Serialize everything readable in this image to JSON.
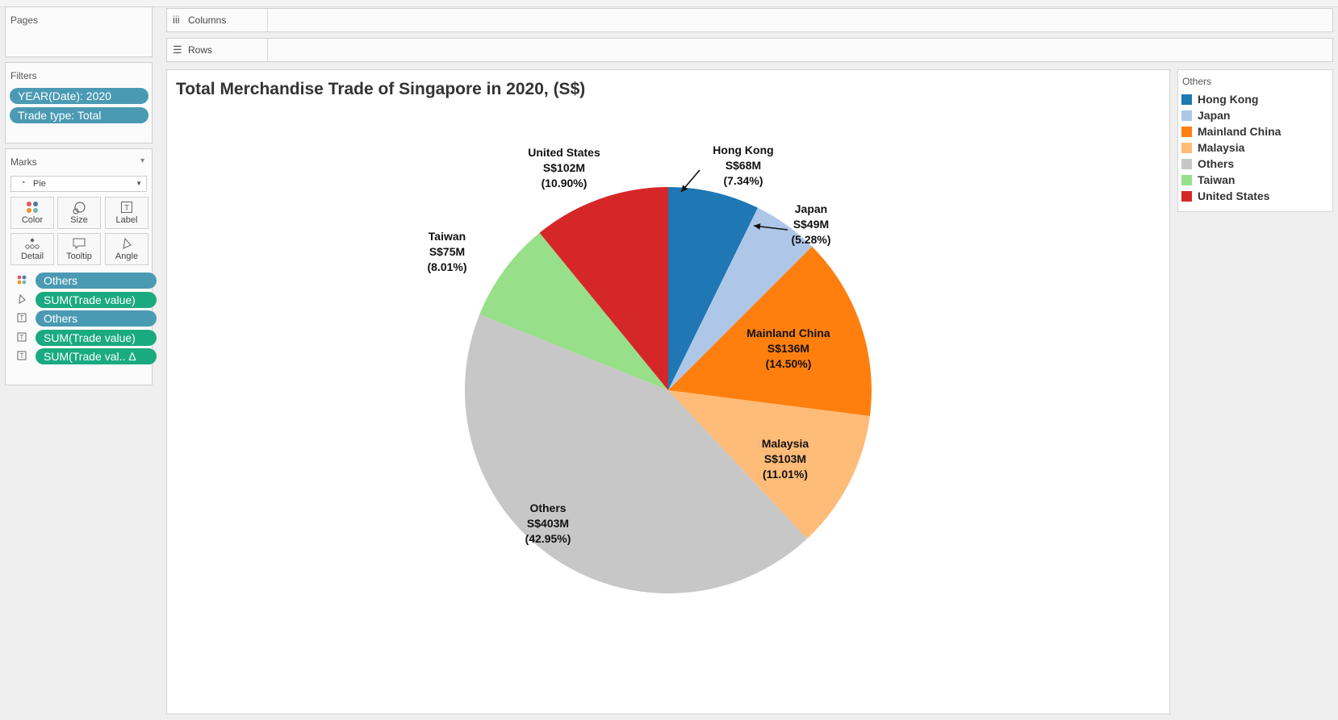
{
  "pages": {
    "title": "Pages"
  },
  "filters": {
    "title": "Filters",
    "items": [
      "YEAR(Date): 2020",
      "Trade type: Total"
    ]
  },
  "shelves": {
    "columns_label": "Columns",
    "rows_label": "Rows"
  },
  "marks": {
    "title": "Marks",
    "mark_type": "Pie",
    "buttons": [
      "Color",
      "Size",
      "Label",
      "Detail",
      "Tooltip",
      "Angle"
    ],
    "fields": [
      {
        "icon": "color-icon",
        "label": "Others",
        "kind": "dimension"
      },
      {
        "icon": "angle-icon",
        "label": "SUM(Trade value)",
        "kind": "measure"
      },
      {
        "icon": "label-icon",
        "label": "Others",
        "kind": "dimension"
      },
      {
        "icon": "label-icon",
        "label": "SUM(Trade value)",
        "kind": "measure"
      },
      {
        "icon": "label-icon",
        "label": "SUM(Trade val.. Δ",
        "kind": "measure"
      }
    ]
  },
  "legend": {
    "title": "Others",
    "items": [
      {
        "label": "Hong Kong",
        "color": "#1f77b4"
      },
      {
        "label": "Japan",
        "color": "#aec7e8"
      },
      {
        "label": "Mainland China",
        "color": "#ff7f0e"
      },
      {
        "label": "Malaysia",
        "color": "#ffbb78"
      },
      {
        "label": "Others",
        "color": "#c7c7c7"
      },
      {
        "label": "Taiwan",
        "color": "#98df8a"
      },
      {
        "label": "United States",
        "color": "#d62728"
      }
    ]
  },
  "chart_data": {
    "type": "pie",
    "title": "Total Merchandise Trade of Singapore in 2020, (S$)",
    "categories": [
      "Hong Kong",
      "Japan",
      "Mainland China",
      "Malaysia",
      "Others",
      "Taiwan",
      "United States"
    ],
    "values": [
      68,
      49,
      136,
      103,
      403,
      75,
      102
    ],
    "value_labels": [
      "S$68M",
      "S$49M",
      "S$136M",
      "S$103M",
      "S$403M",
      "S$75M",
      "S$102M"
    ],
    "percent_labels": [
      "(7.34%)",
      "(5.28%)",
      "(14.50%)",
      "(11.01%)",
      "(42.95%)",
      "(8.01%)",
      "(10.90%)"
    ],
    "percents": [
      7.34,
      5.28,
      14.5,
      11.01,
      42.95,
      8.01,
      10.9
    ],
    "colors": [
      "#1f77b4",
      "#aec7e8",
      "#ff7f0e",
      "#ffbb78",
      "#c7c7c7",
      "#98df8a",
      "#d62728"
    ],
    "start": "12 o'clock, clockwise",
    "legend_position": "right"
  }
}
